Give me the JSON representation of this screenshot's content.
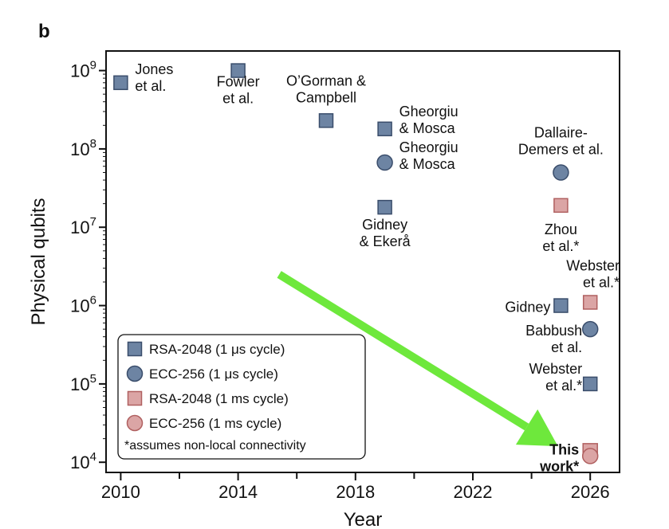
{
  "panel_label": "b",
  "chart_data": {
    "type": "scatter",
    "xlabel": "Year",
    "ylabel": "Physical qubits",
    "xlim": [
      2009.5,
      2027
    ],
    "ylim_log10": [
      3.87,
      9.25
    ],
    "y_scale": "log",
    "xticks": [
      2010,
      2014,
      2018,
      2022,
      2026
    ],
    "xminor": [
      2012,
      2016,
      2020,
      2024
    ],
    "yticks": [
      {
        "base": "10",
        "exp": "4",
        "value": 10000
      },
      {
        "base": "10",
        "exp": "5",
        "value": 100000
      },
      {
        "base": "10",
        "exp": "6",
        "value": 1000000
      },
      {
        "base": "10",
        "exp": "7",
        "value": 10000000
      },
      {
        "base": "10",
        "exp": "8",
        "value": 100000000
      },
      {
        "base": "10",
        "exp": "9",
        "value": 1000000000
      }
    ],
    "grid": false,
    "legend_position": "bottom-left",
    "series": [
      {
        "name": "RSA-2048 (1 μs cycle)",
        "marker": "square",
        "fill": "#6d84a3",
        "stroke": "#3a4d6b"
      },
      {
        "name": "ECC-256 (1 μs cycle)",
        "marker": "circle",
        "fill": "#6d84a3",
        "stroke": "#3a4d6b"
      },
      {
        "name": "RSA-2048 (1 ms cycle)",
        "marker": "square",
        "fill": "#dba5a5",
        "stroke": "#b06060"
      },
      {
        "name": "ECC-256 (1 ms cycle)",
        "marker": "circle",
        "fill": "#dba5a5",
        "stroke": "#b06060"
      }
    ],
    "legend_note": "*assumes non-local connectivity",
    "points": [
      {
        "series": 0,
        "x": 2010,
        "y": 700000000,
        "label": [
          "Jones",
          "et al."
        ]
      },
      {
        "series": 0,
        "x": 2014,
        "y": 1000000000,
        "label": [
          "Fowler",
          "et al."
        ]
      },
      {
        "series": 0,
        "x": 2017,
        "y": 230000000,
        "label": [
          "O’Gorman &",
          "Campbell"
        ]
      },
      {
        "series": 0,
        "x": 2019,
        "y": 180000000,
        "label": [
          "Gheorgiu",
          "& Mosca"
        ]
      },
      {
        "series": 1,
        "x": 2019,
        "y": 67000000,
        "label": [
          "Gheorgiu",
          "& Mosca"
        ]
      },
      {
        "series": 0,
        "x": 2019,
        "y": 18000000,
        "label": [
          "Gidney",
          "& Ekerå"
        ]
      },
      {
        "series": 1,
        "x": 2025,
        "y": 50000000,
        "label": [
          "Dallaire-",
          "Demers et al."
        ]
      },
      {
        "series": 2,
        "x": 2025,
        "y": 19000000,
        "label": [
          "Zhou",
          "et al.*"
        ]
      },
      {
        "series": 2,
        "x": 2026,
        "y": 1100000,
        "label": [
          "Webster",
          "et al.*"
        ]
      },
      {
        "series": 0,
        "x": 2025,
        "y": 1000000,
        "label": [
          "Gidney"
        ]
      },
      {
        "series": 1,
        "x": 2026,
        "y": 500000,
        "label": [
          "Babbush",
          "et al."
        ]
      },
      {
        "series": 0,
        "x": 2026,
        "y": 100000,
        "label": [
          "Webster",
          "et al.*"
        ]
      },
      {
        "series": 2,
        "x": 2026,
        "y": 14000,
        "label": []
      },
      {
        "series": 3,
        "x": 2026,
        "y": 12000,
        "label": [
          "This",
          "work*"
        ],
        "bold": true
      }
    ],
    "arrow": {
      "from": [
        2015.4,
        2500000
      ],
      "to": [
        2024.9,
        16000
      ],
      "color": "#6ee83c"
    }
  }
}
